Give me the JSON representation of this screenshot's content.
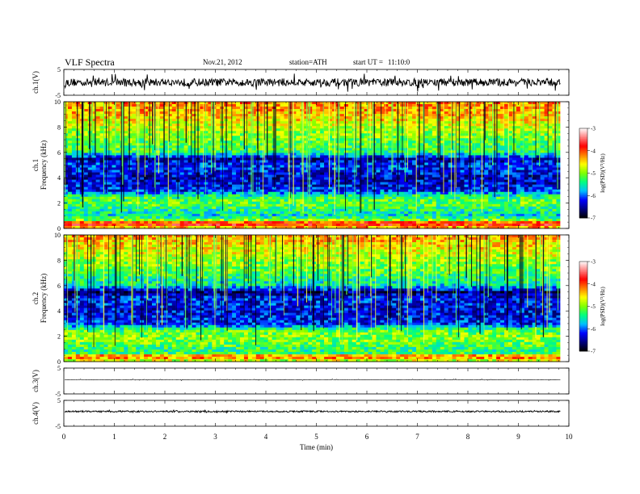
{
  "header": {
    "title": "VLF  Spectra",
    "date": "Nov.21, 2012",
    "station": "station=ATH",
    "start_label": "start  UT =",
    "start_time": "11:10:0"
  },
  "chart_data": [
    {
      "type": "line",
      "name": "ch1-waveform",
      "ylabel": "ch.1(V)",
      "ylim": [
        -5,
        5
      ],
      "ytick_labels": [
        "5",
        "-5"
      ],
      "xlim": [
        0,
        10
      ],
      "data_end_min": 9.83,
      "level_v": 0.0,
      "noise_amplitude_v": 1.5,
      "spike_amplitude_v": 3.5
    },
    {
      "type": "heatmap",
      "name": "ch1-spectrogram",
      "ylabel": "ch.1",
      "ylabel2": "Frequency  (kHz)",
      "ylim": [
        0,
        10
      ],
      "ytick_labels": [
        "0",
        "2",
        "4",
        "6",
        "8",
        "10"
      ],
      "xlim": [
        0,
        10
      ],
      "data_end_min": 9.83,
      "colorbar": {
        "label": "log(PSD)(V²/Hz)",
        "range": [
          -7,
          -3
        ],
        "tick_labels": [
          "-3",
          "-4",
          "-5",
          "-6",
          "-7"
        ]
      },
      "profile_log_psd": [
        [
          0.0,
          -4.6
        ],
        [
          0.4,
          -3.6
        ],
        [
          0.7,
          -5.2
        ],
        [
          1.0,
          -5.6
        ],
        [
          1.5,
          -5.4
        ],
        [
          2.0,
          -5.1
        ],
        [
          2.5,
          -5.3
        ],
        [
          3.0,
          -6.2
        ],
        [
          4.0,
          -6.4
        ],
        [
          5.0,
          -6.1
        ],
        [
          5.5,
          -6.5
        ],
        [
          6.0,
          -5.3
        ],
        [
          7.0,
          -5.1
        ],
        [
          8.0,
          -4.8
        ],
        [
          9.0,
          -4.4
        ],
        [
          10.0,
          -4.2
        ]
      ]
    },
    {
      "type": "heatmap",
      "name": "ch2-spectrogram",
      "ylabel": "ch.2",
      "ylabel2": "Frequency  (kHz)",
      "ylim": [
        0,
        10
      ],
      "ytick_labels": [
        "0",
        "2",
        "4",
        "6",
        "8",
        "10"
      ],
      "xlim": [
        0,
        10
      ],
      "data_end_min": 9.83,
      "colorbar": {
        "label": "log(PSD)(V²/Hz)",
        "range": [
          -7,
          -3
        ],
        "tick_labels": [
          "-3",
          "-4",
          "-5",
          "-6",
          "-7"
        ]
      },
      "profile_log_psd": [
        [
          0.0,
          -5.0
        ],
        [
          0.4,
          -4.0
        ],
        [
          0.7,
          -5.4
        ],
        [
          1.0,
          -5.3
        ],
        [
          1.5,
          -5.1
        ],
        [
          2.0,
          -5.0
        ],
        [
          2.5,
          -5.2
        ],
        [
          3.0,
          -6.2
        ],
        [
          4.0,
          -6.3
        ],
        [
          5.0,
          -6.2
        ],
        [
          5.5,
          -6.6
        ],
        [
          6.0,
          -5.6
        ],
        [
          7.0,
          -5.2
        ],
        [
          8.0,
          -4.9
        ],
        [
          9.0,
          -4.6
        ],
        [
          10.0,
          -4.3
        ]
      ]
    },
    {
      "type": "line",
      "name": "ch3-waveform",
      "ylabel": "ch.3(V)",
      "ylim": [
        -5,
        5
      ],
      "ytick_labels": [
        "5",
        "-5"
      ],
      "xlim": [
        0,
        10
      ],
      "data_end_min": 9.83,
      "level_v": 0.5,
      "noise_amplitude_v": 0.05,
      "spike_amplitude_v": 0.3
    },
    {
      "type": "line",
      "name": "ch4-waveform",
      "ylabel": "ch.4(V)",
      "ylim": [
        -5,
        5
      ],
      "ytick_labels": [
        "5",
        "-5"
      ],
      "xlim": [
        0,
        10
      ],
      "data_end_min": 9.83,
      "level_v": 0.7,
      "noise_amplitude_v": 0.3,
      "spike_amplitude_v": 0.3
    }
  ],
  "x_axis": {
    "label": "Time  (min)",
    "range": [
      0,
      10
    ],
    "tick_labels": [
      "0",
      "1",
      "2",
      "3",
      "4",
      "5",
      "6",
      "7",
      "8",
      "9",
      "10"
    ]
  },
  "colormap": [
    "#000000",
    "#000080",
    "#0000ff",
    "#00c0ff",
    "#00ff80",
    "#80ff00",
    "#ffff00",
    "#ff8000",
    "#ff0000",
    "#ff8080",
    "#ffffff"
  ]
}
